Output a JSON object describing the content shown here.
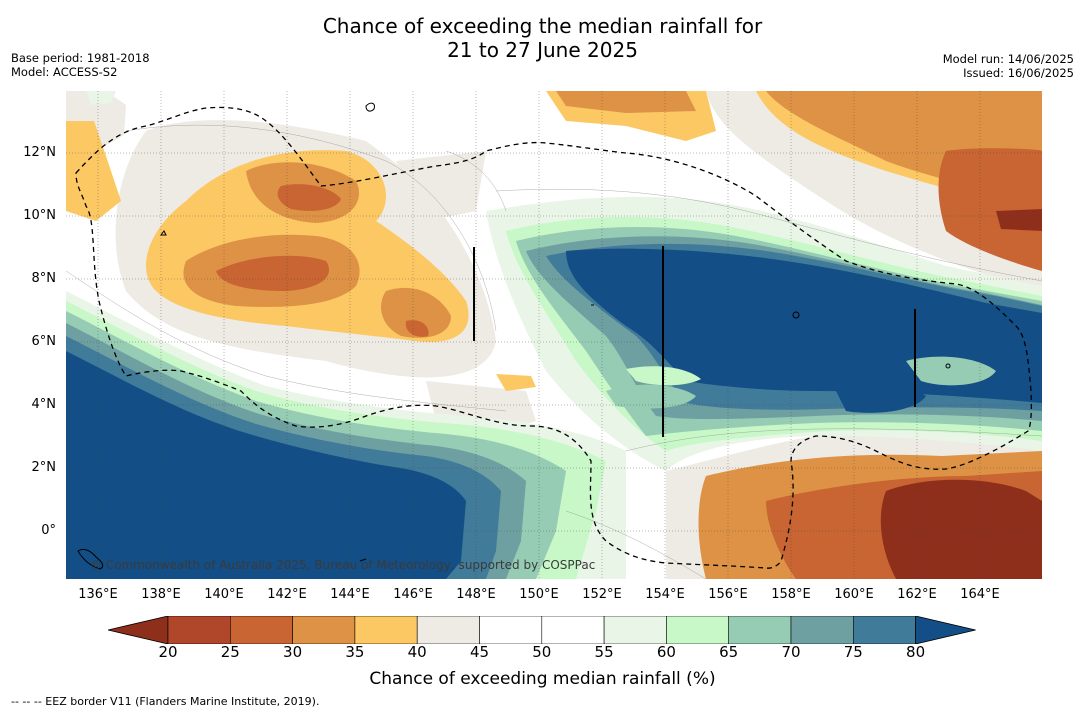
{
  "title": {
    "line1": "Chance of exceeding the median rainfall for",
    "line2": "21 to 27 June 2025"
  },
  "meta_left": {
    "base_period": "Base period: 1981-2018",
    "model": "Model: ACCESS-S2"
  },
  "meta_right": {
    "model_run": "Model run: 14/06/2025",
    "issued": "Issued: 16/06/2025"
  },
  "map": {
    "latitude_labels": [
      "12°N",
      "10°N",
      "8°N",
      "6°N",
      "4°N",
      "2°N",
      "0°"
    ],
    "longitude_labels": [
      "136°E",
      "138°E",
      "140°E",
      "142°E",
      "144°E",
      "146°E",
      "148°E",
      "150°E",
      "152°E",
      "154°E",
      "156°E",
      "158°E",
      "160°E",
      "162°E",
      "164°E"
    ],
    "copyright": "© Commonwealth of Australia 2025, Bureau of Meteorology, supported by COSPPac",
    "border_style": "dashed",
    "grid": "dotted"
  },
  "colorbar": {
    "ticks": [
      "20",
      "25",
      "30",
      "35",
      "40",
      "45",
      "50",
      "55",
      "60",
      "65",
      "70",
      "75",
      "80"
    ],
    "colors": [
      "#8e2f1c",
      "#b0462a",
      "#c96532",
      "#de9245",
      "#fcc864",
      "#eeeae4",
      "#ffffff",
      "#ffffff",
      "#e9f5e6",
      "#c8f7c8",
      "#96ccb4",
      "#6ea0a2",
      "#417b9a",
      "#134e86"
    ],
    "title": "Chance of exceeding median rainfall (%)"
  },
  "legend_note": "-- -- -- EEZ border V11 (Flanders Marine Institute, 2019)."
}
